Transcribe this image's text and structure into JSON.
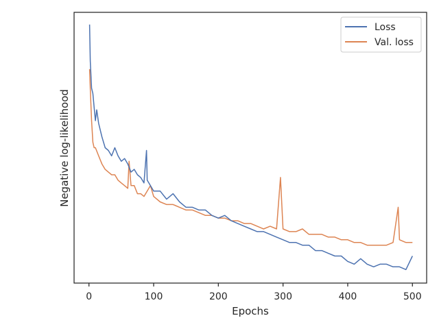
{
  "chart_data": {
    "type": "line",
    "title": "",
    "xlabel": "Epochs",
    "ylabel": "Negative log-likelihood",
    "xlim": [
      -23,
      522
    ],
    "ylim": [
      0.0,
      1.0
    ],
    "y_tick_labels_shown": false,
    "grid": false,
    "legend_position": "top-right",
    "x_ticks": [
      0,
      100,
      200,
      300,
      400,
      500
    ],
    "colors": {
      "Loss": "#4c72b0",
      "Val. loss": "#dd8452",
      "axes": "#262626"
    },
    "series": [
      {
        "name": "Loss",
        "x": [
          1,
          2,
          4,
          6,
          8,
          10,
          12,
          15,
          20,
          25,
          30,
          35,
          40,
          45,
          50,
          55,
          60,
          65,
          70,
          75,
          80,
          85,
          89,
          90,
          95,
          100,
          110,
          120,
          130,
          140,
          150,
          160,
          170,
          180,
          190,
          200,
          210,
          220,
          230,
          240,
          250,
          260,
          270,
          280,
          290,
          300,
          310,
          320,
          330,
          340,
          350,
          360,
          370,
          380,
          390,
          400,
          410,
          420,
          430,
          440,
          450,
          460,
          470,
          480,
          490,
          500
        ],
        "y": [
          0.955,
          0.82,
          0.72,
          0.7,
          0.65,
          0.6,
          0.64,
          0.59,
          0.54,
          0.5,
          0.49,
          0.47,
          0.5,
          0.47,
          0.45,
          0.46,
          0.44,
          0.41,
          0.42,
          0.4,
          0.39,
          0.37,
          0.49,
          0.38,
          0.36,
          0.34,
          0.34,
          0.31,
          0.33,
          0.3,
          0.28,
          0.28,
          0.27,
          0.27,
          0.25,
          0.24,
          0.25,
          0.23,
          0.22,
          0.21,
          0.2,
          0.19,
          0.19,
          0.18,
          0.17,
          0.16,
          0.15,
          0.15,
          0.14,
          0.14,
          0.12,
          0.12,
          0.11,
          0.1,
          0.1,
          0.08,
          0.07,
          0.09,
          0.07,
          0.06,
          0.07,
          0.07,
          0.06,
          0.06,
          0.05,
          0.1
        ]
      },
      {
        "name": "Val. loss",
        "x": [
          1,
          2,
          4,
          6,
          8,
          10,
          15,
          20,
          25,
          30,
          35,
          40,
          45,
          50,
          55,
          60,
          62,
          65,
          70,
          75,
          80,
          85,
          90,
          95,
          100,
          110,
          120,
          130,
          140,
          150,
          160,
          170,
          180,
          190,
          200,
          210,
          220,
          230,
          240,
          250,
          260,
          270,
          280,
          290,
          296,
          300,
          310,
          320,
          330,
          340,
          350,
          360,
          370,
          380,
          390,
          400,
          410,
          420,
          430,
          440,
          450,
          460,
          470,
          478,
          480,
          490,
          500
        ],
        "y": [
          0.79,
          0.72,
          0.6,
          0.52,
          0.5,
          0.5,
          0.47,
          0.44,
          0.42,
          0.41,
          0.4,
          0.4,
          0.38,
          0.37,
          0.36,
          0.35,
          0.45,
          0.36,
          0.36,
          0.33,
          0.33,
          0.32,
          0.34,
          0.36,
          0.32,
          0.3,
          0.29,
          0.29,
          0.28,
          0.27,
          0.27,
          0.26,
          0.25,
          0.25,
          0.24,
          0.24,
          0.23,
          0.23,
          0.22,
          0.22,
          0.21,
          0.2,
          0.21,
          0.2,
          0.39,
          0.2,
          0.19,
          0.19,
          0.2,
          0.18,
          0.18,
          0.18,
          0.17,
          0.17,
          0.16,
          0.16,
          0.15,
          0.15,
          0.14,
          0.14,
          0.14,
          0.14,
          0.15,
          0.28,
          0.16,
          0.15,
          0.15
        ]
      }
    ]
  }
}
